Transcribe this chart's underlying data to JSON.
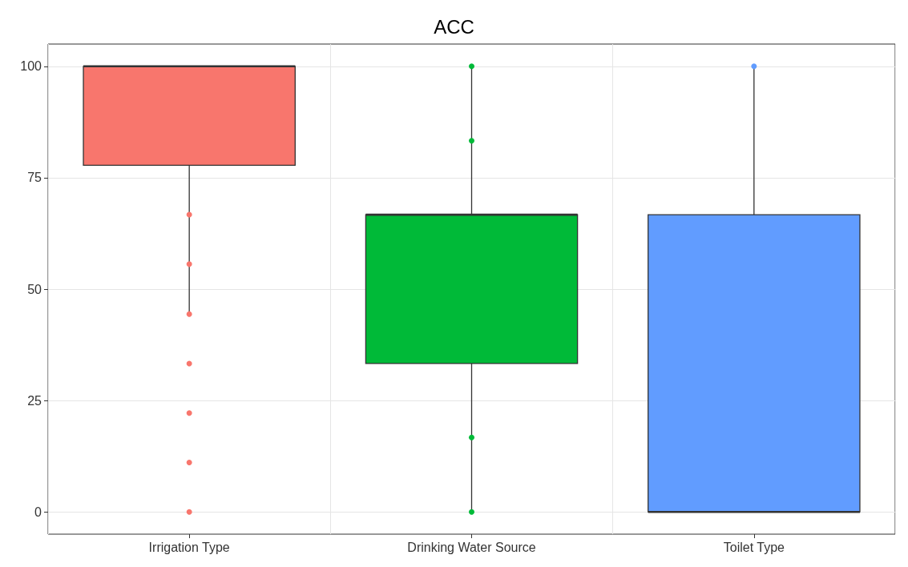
{
  "chart_data": {
    "type": "box",
    "title": "ACC",
    "categories": [
      "Irrigation Type",
      "Drinking Water Source",
      "Toilet Type"
    ],
    "ylim": [
      -5,
      105
    ],
    "yticks": [
      0,
      25,
      50,
      75,
      100
    ],
    "grid": true,
    "series": [
      {
        "colors": [
          "#f8766d",
          "#00ba38",
          "#619cff"
        ],
        "boxes": [
          {
            "low": 44.4,
            "q1": 77.8,
            "median": 100,
            "q3": 100,
            "high": 100
          },
          {
            "low": 0,
            "q1": 33.3,
            "median": 66.7,
            "q3": 66.7,
            "high": 100
          },
          {
            "low": 0,
            "q1": 0,
            "median": 0,
            "q3": 66.7,
            "high": 100
          }
        ]
      },
      {
        "type": "scatter",
        "color": "#f8766d",
        "x": [
          "Irrigation Type",
          "Irrigation Type",
          "Irrigation Type",
          "Irrigation Type",
          "Irrigation Type",
          "Irrigation Type",
          "Irrigation Type"
        ],
        "values": [
          66.7,
          55.6,
          44.4,
          33.3,
          22.2,
          11.1,
          0
        ]
      },
      {
        "type": "scatter",
        "color": "#00ba38",
        "x": [
          "Drinking Water Source",
          "Drinking Water Source",
          "Drinking Water Source",
          "Drinking Water Source"
        ],
        "values": [
          100,
          83.3,
          16.7,
          0
        ]
      },
      {
        "type": "scatter",
        "color": "#619cff",
        "x": [
          "Toilet Type"
        ],
        "values": [
          100
        ]
      }
    ]
  }
}
